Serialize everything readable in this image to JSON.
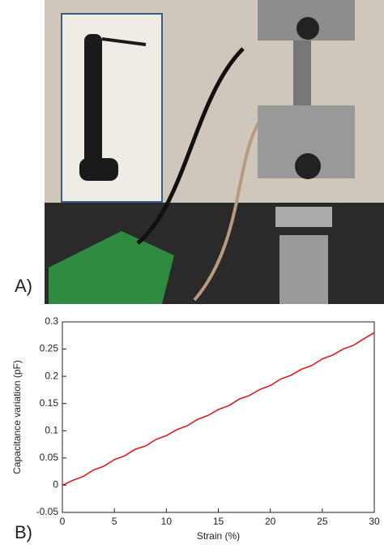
{
  "panel_labels": {
    "a": "A)",
    "b": "B)"
  },
  "chart_data": {
    "type": "line",
    "x_label": "Strain (%)",
    "y_label": "Capacitance variation (pF)",
    "x": [
      0,
      1,
      2,
      3,
      4,
      5,
      6,
      7,
      8,
      9,
      10,
      11,
      12,
      13,
      14,
      15,
      16,
      17,
      18,
      19,
      20,
      21,
      22,
      23,
      24,
      25,
      26,
      27,
      28,
      29,
      30
    ],
    "series": [
      {
        "color": "#e01010",
        "values": [
          0.0,
          0.009,
          0.016,
          0.028,
          0.035,
          0.047,
          0.054,
          0.066,
          0.072,
          0.084,
          0.091,
          0.102,
          0.109,
          0.121,
          0.128,
          0.139,
          0.146,
          0.158,
          0.165,
          0.176,
          0.183,
          0.195,
          0.202,
          0.213,
          0.22,
          0.232,
          0.239,
          0.25,
          0.257,
          0.269,
          0.28
        ]
      }
    ],
    "xlim": [
      0,
      30
    ],
    "xticks": [
      0,
      5,
      10,
      15,
      20,
      25,
      30
    ],
    "ylim": [
      -0.05,
      0.3
    ],
    "yticks": [
      -0.05,
      0,
      0.05,
      0.1,
      0.15,
      0.2,
      0.25,
      0.3
    ]
  }
}
